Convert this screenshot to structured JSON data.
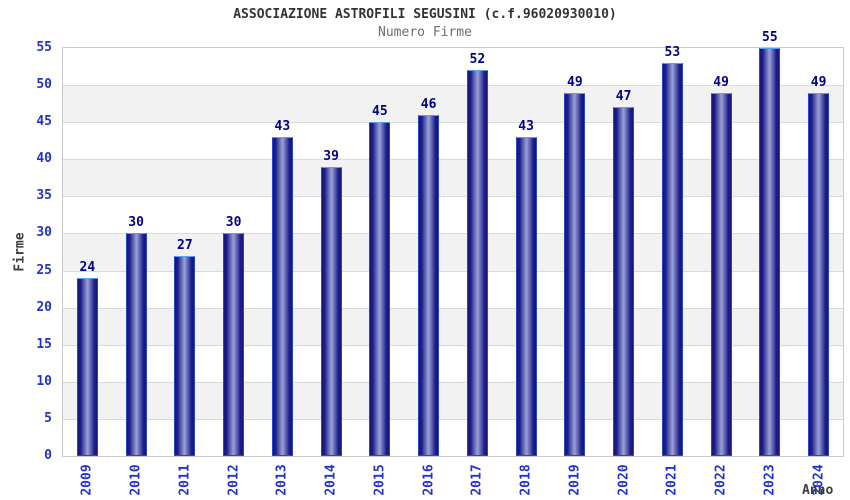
{
  "chart_data": {
    "type": "bar",
    "title": "ASSOCIAZIONE ASTROFILI SEGUSINI (c.f.96020930010)",
    "subtitle": "Numero Firme",
    "xlabel": "Anno",
    "ylabel": "Firme",
    "categories": [
      "2009",
      "2010",
      "2011",
      "2012",
      "2013",
      "2014",
      "2015",
      "2016",
      "2017",
      "2018",
      "2019",
      "2020",
      "2021",
      "2022",
      "2023",
      "2024"
    ],
    "values": [
      24,
      30,
      27,
      30,
      43,
      39,
      45,
      46,
      52,
      43,
      49,
      47,
      53,
      49,
      55,
      49
    ],
    "ylim": [
      0,
      55
    ],
    "ytick_step": 5,
    "yticks": [
      0,
      5,
      10,
      15,
      20,
      25,
      30,
      35,
      40,
      45,
      50,
      55
    ],
    "grid": true,
    "legend": "none",
    "band_fill_alternating": true,
    "colors": {
      "title": "#333333",
      "subtitle": "#6e6e6e",
      "axis_title": "#3d3d3d",
      "tick_label": "#2233cc",
      "value_label": "#00008b",
      "plot_border": "#c9c9c9",
      "gridline": "#dadada",
      "band_light": "#ffffff",
      "band_dark": "#f2f2f2",
      "bar_edge_stroke": "#2a46cc",
      "bar_top_stroke": "#55a0f2",
      "bar_gradient_dark": "#14147a",
      "bar_gradient_mid": "#1e1e8c",
      "bar_gradient_light": "#9aa2d6",
      "background": "#ffffff"
    }
  }
}
